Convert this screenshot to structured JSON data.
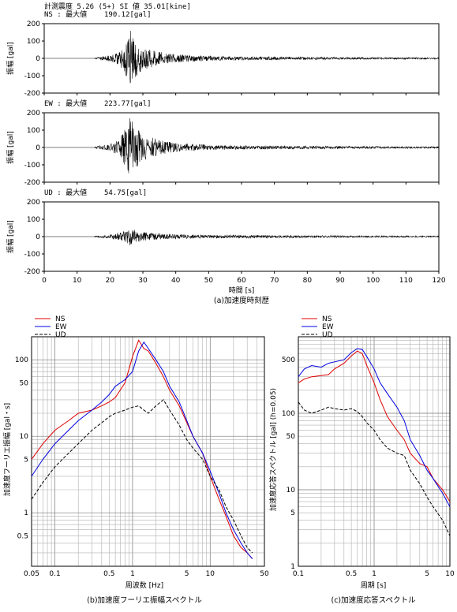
{
  "header": {
    "line1": "計測震度 5.26 (5+)  SI 値  35.01[kine]"
  },
  "colors": {
    "ns": "#e00000",
    "ew": "#0000e0",
    "ud": "#000000"
  },
  "chart_data": [
    {
      "type": "line",
      "id": "time-history",
      "caption": "(a)加速度時刻歴",
      "xlabel": "時間 [s]",
      "ylabel": "振幅 [gal]",
      "xlim": [
        0,
        120
      ],
      "ylim": [
        -200,
        200
      ],
      "xticks": [
        "0",
        "10",
        "20",
        "30",
        "40",
        "50",
        "60",
        "70",
        "80",
        "90",
        "100",
        "110",
        "120"
      ],
      "yticks": [
        "200",
        "100",
        "0",
        "-100",
        "-200"
      ],
      "series": [
        {
          "name": "NS",
          "label": "NS : 最大値",
          "peak": "190.12[gal]",
          "amplitude": 190.12,
          "envelope": [
            [
              0,
              0
            ],
            [
              15,
              0
            ],
            [
              16,
              6
            ],
            [
              20,
              18
            ],
            [
              23,
              40
            ],
            [
              25,
              120
            ],
            [
              26,
              190
            ],
            [
              27,
              130
            ],
            [
              30,
              70
            ],
            [
              35,
              40
            ],
            [
              40,
              25
            ],
            [
              50,
              15
            ],
            [
              60,
              11
            ],
            [
              80,
              8
            ],
            [
              100,
              6
            ],
            [
              120,
              5
            ]
          ]
        },
        {
          "name": "EW",
          "label": "EW : 最大値",
          "peak": "223.77[gal]",
          "amplitude": 223.77,
          "envelope": [
            [
              0,
              0
            ],
            [
              15,
              0
            ],
            [
              16,
              8
            ],
            [
              20,
              22
            ],
            [
              23,
              50
            ],
            [
              25,
              140
            ],
            [
              26,
              223
            ],
            [
              27,
              150
            ],
            [
              30,
              80
            ],
            [
              35,
              45
            ],
            [
              40,
              28
            ],
            [
              50,
              16
            ],
            [
              60,
              12
            ],
            [
              80,
              9
            ],
            [
              100,
              7
            ],
            [
              120,
              5
            ]
          ]
        },
        {
          "name": "UD",
          "label": "UD : 最大値",
          "peak": "54.75[gal]",
          "amplitude": 54.75,
          "envelope": [
            [
              0,
              0
            ],
            [
              15,
              0
            ],
            [
              16,
              5
            ],
            [
              20,
              12
            ],
            [
              24,
              30
            ],
            [
              26,
              54
            ],
            [
              28,
              35
            ],
            [
              32,
              22
            ],
            [
              40,
              14
            ],
            [
              50,
              10
            ],
            [
              70,
              8
            ],
            [
              90,
              6
            ],
            [
              120,
              4
            ]
          ]
        }
      ]
    },
    {
      "type": "line",
      "id": "fourier",
      "caption": "(b)加速度フーリエ振幅スペクトル",
      "xlabel": "周波数 [Hz]",
      "ylabel": "加速度フーリエ振幅 [gal・s]",
      "xscale": "log",
      "yscale": "log",
      "xlim": [
        0.05,
        50
      ],
      "ylim": [
        0.2,
        200
      ],
      "xticks": [
        "0.05",
        "0.1",
        "0.5",
        "1",
        "5",
        "10",
        "50"
      ],
      "yticks": [
        "100",
        "50",
        "10",
        "5",
        "1",
        "0.5"
      ],
      "legend": [
        "NS",
        "EW",
        "UD"
      ],
      "series": [
        {
          "name": "NS",
          "x": [
            0.05,
            0.07,
            0.1,
            0.15,
            0.2,
            0.3,
            0.4,
            0.5,
            0.6,
            0.8,
            1,
            1.2,
            1.4,
            1.6,
            2,
            2.5,
            3,
            4,
            5,
            6,
            8,
            10,
            13,
            16,
            20,
            25,
            30,
            35
          ],
          "y": [
            5,
            8,
            12,
            16,
            20,
            22,
            25,
            28,
            32,
            50,
            110,
            180,
            140,
            130,
            90,
            60,
            40,
            25,
            15,
            10,
            6,
            3,
            1.5,
            0.9,
            0.5,
            0.35,
            0.3,
            0.25
          ]
        },
        {
          "name": "EW",
          "x": [
            0.05,
            0.07,
            0.1,
            0.15,
            0.2,
            0.3,
            0.4,
            0.5,
            0.6,
            0.8,
            1,
            1.2,
            1.4,
            1.6,
            2,
            2.5,
            3,
            4,
            5,
            6,
            8,
            10,
            13,
            16,
            20,
            25,
            30,
            35
          ],
          "y": [
            3,
            5,
            8,
            12,
            16,
            22,
            28,
            35,
            45,
            55,
            70,
            130,
            170,
            140,
            100,
            70,
            45,
            28,
            16,
            10,
            6,
            3.5,
            1.8,
            1,
            0.6,
            0.4,
            0.3,
            0.25
          ]
        },
        {
          "name": "UD",
          "x": [
            0.05,
            0.07,
            0.1,
            0.15,
            0.2,
            0.3,
            0.4,
            0.5,
            0.6,
            0.8,
            1,
            1.2,
            1.4,
            1.6,
            2,
            2.5,
            3,
            4,
            5,
            6,
            8,
            10,
            13,
            16,
            20,
            25,
            30,
            35
          ],
          "y": [
            1.5,
            2.5,
            4,
            6,
            8,
            12,
            15,
            18,
            20,
            22,
            24,
            25,
            22,
            20,
            25,
            30,
            22,
            14,
            9,
            7,
            5,
            3,
            2,
            1.2,
            0.8,
            0.5,
            0.35,
            0.3
          ]
        }
      ]
    },
    {
      "type": "line",
      "id": "response",
      "caption": "(c)加速度応答スペクトル",
      "xlabel": "周期 [s]",
      "ylabel": "加速度応答スペクトル [gal] (h=0.05)",
      "xscale": "log",
      "yscale": "log",
      "xlim": [
        0.1,
        10
      ],
      "ylim": [
        1,
        1000
      ],
      "xticks": [
        "0.1",
        "0.5",
        "1",
        "5",
        "10"
      ],
      "yticks": [
        "500",
        "100",
        "50",
        "10",
        "5",
        "1"
      ],
      "legend": [
        "NS",
        "EW",
        "UD"
      ],
      "series": [
        {
          "name": "NS",
          "x": [
            0.1,
            0.12,
            0.15,
            0.2,
            0.25,
            0.3,
            0.4,
            0.5,
            0.6,
            0.7,
            0.8,
            1,
            1.2,
            1.5,
            2,
            2.5,
            3,
            4,
            5,
            6,
            8,
            10
          ],
          "y": [
            250,
            280,
            300,
            310,
            320,
            380,
            450,
            560,
            650,
            600,
            420,
            250,
            150,
            90,
            60,
            45,
            30,
            22,
            20,
            14,
            10,
            7
          ]
        },
        {
          "name": "EW",
          "x": [
            0.1,
            0.12,
            0.15,
            0.2,
            0.25,
            0.3,
            0.4,
            0.5,
            0.6,
            0.7,
            0.8,
            1,
            1.2,
            1.5,
            2,
            2.5,
            3,
            4,
            5,
            6,
            8,
            10
          ],
          "y": [
            300,
            380,
            420,
            400,
            450,
            470,
            500,
            620,
            700,
            680,
            550,
            380,
            250,
            180,
            120,
            80,
            45,
            28,
            18,
            14,
            9,
            6
          ]
        },
        {
          "name": "UD",
          "x": [
            0.1,
            0.12,
            0.15,
            0.2,
            0.25,
            0.3,
            0.4,
            0.5,
            0.6,
            0.7,
            0.8,
            1,
            1.2,
            1.5,
            2,
            2.5,
            3,
            4,
            5,
            6,
            8,
            10
          ],
          "y": [
            140,
            110,
            100,
            110,
            120,
            115,
            110,
            115,
            105,
            90,
            75,
            60,
            45,
            35,
            30,
            28,
            18,
            12,
            8,
            6,
            4,
            2.5
          ]
        }
      ]
    }
  ]
}
